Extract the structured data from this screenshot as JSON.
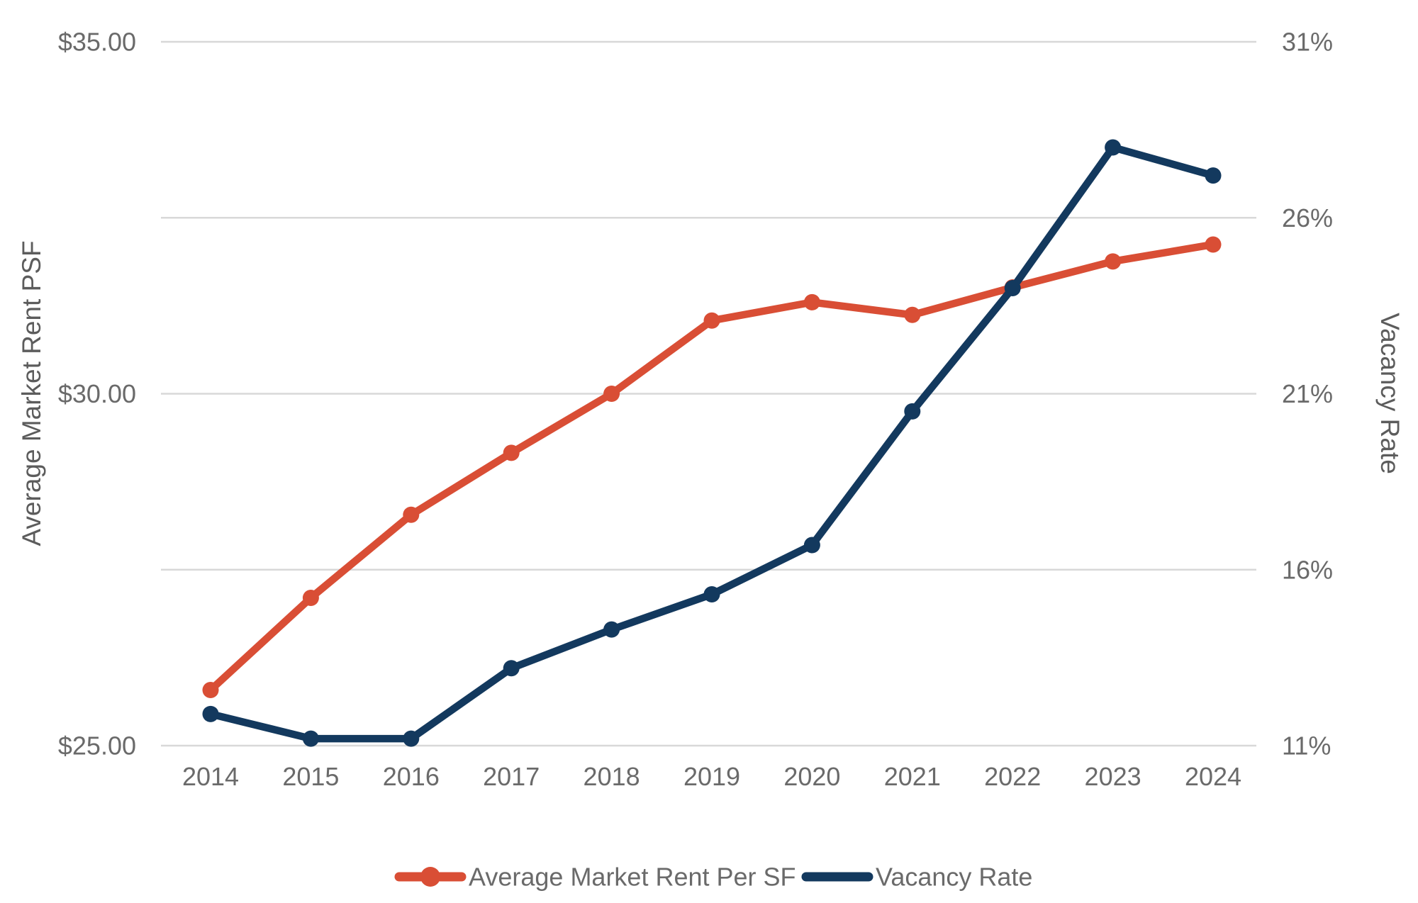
{
  "chart_data": {
    "type": "line",
    "categories": [
      "2014",
      "2015",
      "2016",
      "2017",
      "2018",
      "2019",
      "2020",
      "2021",
      "2022",
      "2023",
      "2024"
    ],
    "series": [
      {
        "name": "Average Market Rent Per SF",
        "axis": "left",
        "color": "#D94E35",
        "marker": "circle",
        "values": [
          25.79,
          27.1,
          28.28,
          29.16,
          30.0,
          31.04,
          31.3,
          31.12,
          31.51,
          31.88,
          32.12
        ]
      },
      {
        "name": "Vacancy Rate",
        "axis": "right",
        "color": "#13395E",
        "marker": "circle",
        "values": [
          11.9,
          11.2,
          11.2,
          13.2,
          14.3,
          15.3,
          16.7,
          20.5,
          24.0,
          28.0,
          27.2
        ]
      }
    ],
    "left_axis": {
      "label": "Average Market Rent PSF",
      "min": 25,
      "max": 35,
      "gridline_values": [
        35,
        32.5,
        30,
        27.5,
        25
      ],
      "tick_values": [
        35,
        30,
        25
      ],
      "tick_labels": [
        "$35.00",
        "$30.00",
        "$25.00"
      ]
    },
    "right_axis": {
      "label": "Vacancy Rate",
      "min": 11,
      "max": 31,
      "tick_values": [
        31,
        26,
        21,
        16,
        11
      ],
      "tick_labels": [
        "31%",
        "26%",
        "21%",
        "16%",
        "11%"
      ]
    },
    "legend": {
      "position": "bottom",
      "entries": [
        "Average Market Rent Per SF",
        "Vacancy Rate"
      ]
    },
    "grid": true,
    "title": "",
    "colors": {
      "gridline": "#D8D8D8",
      "tick_text": "#6a6a6a",
      "axis_title_text": "#5c5c5c",
      "background": "#ffffff"
    }
  }
}
